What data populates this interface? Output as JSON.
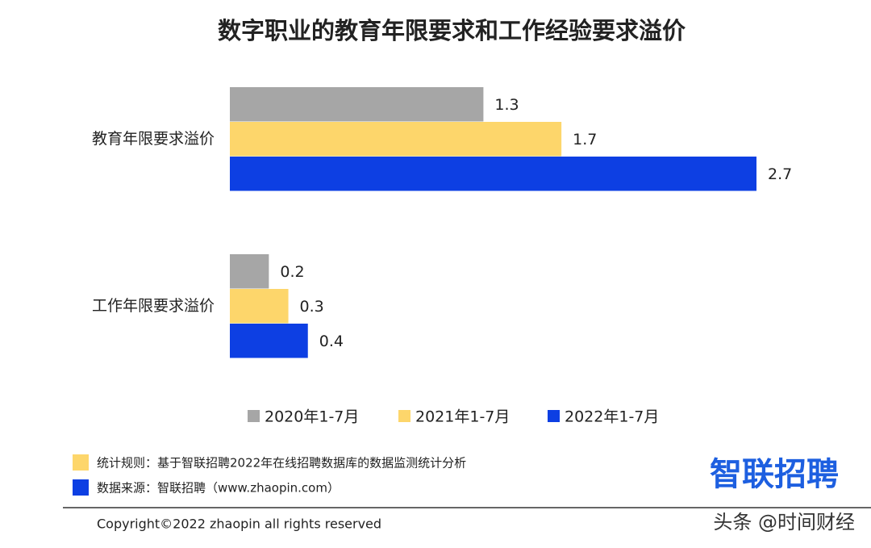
{
  "chart_data": {
    "type": "bar",
    "orientation": "horizontal",
    "title": "数字职业的教育年限要求和工作经验要求溢价",
    "categories": [
      "教育年限要求溢价",
      "工作年限要求溢价"
    ],
    "series": [
      {
        "name": "2020年1-7月",
        "color": "#a6a6a6",
        "values": [
          1.3,
          0.2
        ]
      },
      {
        "name": "2021年1-7月",
        "color": "#fdd66b",
        "values": [
          1.7,
          0.3
        ]
      },
      {
        "name": "2022年1-7月",
        "color": "#0d3fe3",
        "values": [
          2.7,
          0.4
        ]
      }
    ],
    "legend": "bottom"
  },
  "footer": {
    "notes": [
      "统计规则：基于智联招聘2022年在线招聘数据库的数据监测统计分析",
      "数据来源：智联招聘（www.zhaopin.com）"
    ],
    "logo": "智联招聘",
    "copyright": "Copyright©2022 zhaopin all rights reserved",
    "watermark": "头条 @时间财经"
  }
}
